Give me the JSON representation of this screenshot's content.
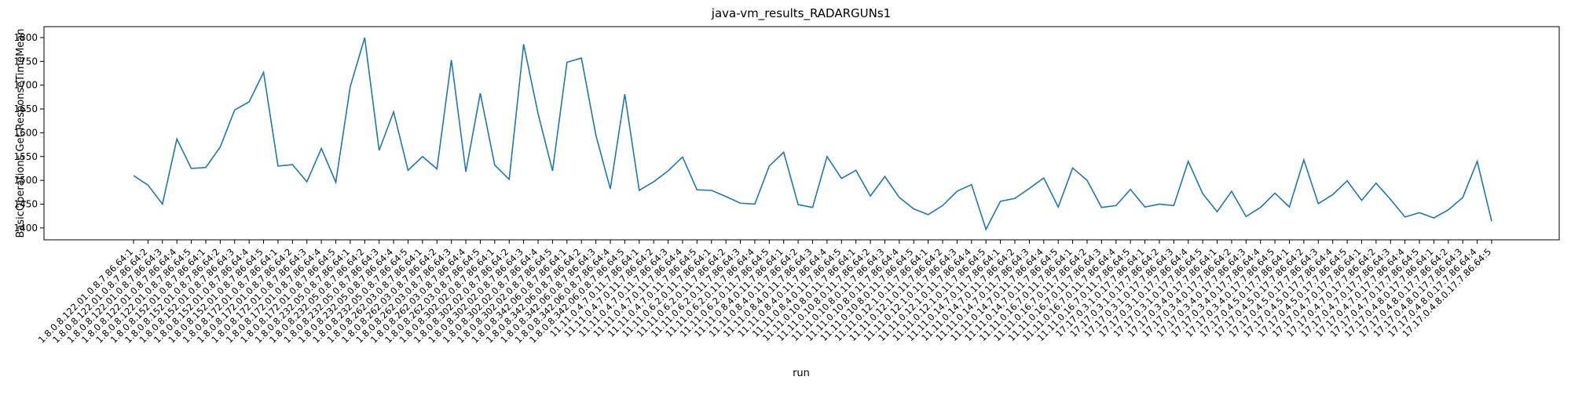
{
  "chart_data": {
    "type": "line",
    "title": "java-vm_results_RADARGUNs1",
    "x_label": "run",
    "y_label": "BasicOperations.Get.ResponseTimeMean",
    "categories": [
      "1.8.0.8.122.01.0.8.7.86.64:1",
      "1.8.0.8.122.01.0.8.7.86.64:2",
      "1.8.0.8.122.01.0.8.7.86.64:3",
      "1.8.0.8.122.01.0.8.7.86.64:4",
      "1.8.0.8.122.01.0.8.7.86.64:5",
      "1.8.0.8.152.01.0.8.7.86.64:1",
      "1.8.0.8.152.01.0.8.7.86.64:2",
      "1.8.0.8.152.01.0.8.7.86.64:3",
      "1.8.0.8.152.01.0.8.7.86.64:4",
      "1.8.0.8.152.01.0.8.7.86.64:5",
      "1.8.0.8.172.01.0.8.7.86.64:1",
      "1.8.0.8.172.01.0.8.7.86.64:2",
      "1.8.0.8.172.01.0.8.7.86.64:3",
      "1.8.0.8.172.01.0.8.7.86.64:4",
      "1.8.0.8.172.01.0.8.7.86.64:5",
      "1.8.0.8.232.05.0.8.7.86.64:1",
      "1.8.0.8.232.05.0.8.7.86.64:2",
      "1.8.0.8.232.05.0.8.7.86.64:3",
      "1.8.0.8.232.05.0.8.7.86.64:4",
      "1.8.0.8.232.05.0.8.7.86.64:5",
      "1.8.0.8.262.03.0.8.7.86.64:1",
      "1.8.0.8.262.03.0.8.7.86.64:2",
      "1.8.0.8.262.03.0.8.7.86.64:3",
      "1.8.0.8.262.03.0.8.7.86.64:4",
      "1.8.0.8.262.03.0.8.7.86.64:5",
      "1.8.0.8.302.02.0.8.7.86.64:1",
      "1.8.0.8.302.02.0.8.7.86.64:2",
      "1.8.0.8.302.02.0.8.7.86.64:3",
      "1.8.0.8.302.02.0.8.7.86.64:4",
      "1.8.0.8.302.02.0.8.7.86.64:5",
      "1.8.0.8.342.06.0.8.7.86.64:1",
      "1.8.0.8.342.06.0.8.7.86.64:2",
      "1.8.0.8.342.06.0.8.7.86.64:3",
      "1.8.0.8.342.06.0.8.7.86.64:4",
      "1.8.0.8.342.06.0.8.7.86.64:5",
      "11.11.0.4.7.0.11.7.86.64:1",
      "11.11.0.4.7.0.11.7.86.64:2",
      "11.11.0.4.7.0.11.7.86.64:3",
      "11.11.0.4.7.0.11.7.86.64:4",
      "11.11.0.4.7.0.11.7.86.64:5",
      "11.11.0.6.2.0.11.7.86.64:1",
      "11.11.0.6.2.0.11.7.86.64:2",
      "11.11.0.6.2.0.11.7.86.64:3",
      "11.11.0.6.2.0.11.7.86.64:4",
      "11.11.0.6.2.0.11.7.86.64:5",
      "11.11.0.8.4.0.11.7.86.64:1",
      "11.11.0.8.4.0.11.7.86.64:2",
      "11.11.0.8.4.0.11.7.86.64:3",
      "11.11.0.8.4.0.11.7.86.64:4",
      "11.11.0.8.4.0.11.7.86.64:5",
      "11.11.0.10.8.0.11.7.86.64:1",
      "11.11.0.10.8.0.11.7.86.64:2",
      "11.11.0.10.8.0.11.7.86.64:3",
      "11.11.0.10.8.0.11.7.86.64:4",
      "11.11.0.10.8.0.11.7.86.64:5",
      "11.11.0.12.1.0.11.7.86.64:1",
      "11.11.0.12.1.0.11.7.86.64:2",
      "11.11.0.12.1.0.11.7.86.64:3",
      "11.11.0.12.1.0.11.7.86.64:4",
      "11.11.0.12.1.0.11.7.86.64:5",
      "11.11.0.14.7.0.11.7.86.64:1",
      "11.11.0.14.7.0.11.7.86.64:2",
      "11.11.0.14.7.0.11.7.86.64:3",
      "11.11.0.14.7.0.11.7.86.64:4",
      "11.11.0.14.7.0.11.7.86.64:5",
      "11.11.0.16.7.0.11.7.86.64:1",
      "11.11.0.16.7.0.11.7.86.64:2",
      "11.11.0.16.7.0.11.7.86.64:3",
      "11.11.0.16.7.0.11.7.86.64:4",
      "11.11.0.16.7.0.11.7.86.64:5",
      "17.17.0.3.1.0.17.7.86.64:1",
      "17.17.0.3.1.0.17.7.86.64:2",
      "17.17.0.3.1.0.17.7.86.64:3",
      "17.17.0.3.1.0.17.7.86.64:4",
      "17.17.0.3.1.0.17.7.86.64:5",
      "17.17.0.3.4.0.17.7.86.64:1",
      "17.17.0.3.4.0.17.7.86.64:2",
      "17.17.0.3.4.0.17.7.86.64:3",
      "17.17.0.3.4.0.17.7.86.64:4",
      "17.17.0.3.4.0.17.7.86.64:5",
      "17.17.0.4.5.0.17.7.86.64:1",
      "17.17.0.4.5.0.17.7.86.64:2",
      "17.17.0.4.5.0.17.7.86.64:3",
      "17.17.0.4.5.0.17.7.86.64:4",
      "17.17.0.4.5.0.17.7.86.64:5",
      "17.17.0.4.7.0.17.7.86.64:1",
      "17.17.0.4.7.0.17.7.86.64:2",
      "17.17.0.4.7.0.17.7.86.64:3",
      "17.17.0.4.7.0.17.7.86.64:4",
      "17.17.0.4.7.0.17.7.86.64:5",
      "17.17.0.4.8.0.17.7.86.64:1",
      "17.17.0.4.8.0.17.7.86.64:2",
      "17.17.0.4.8.0.17.7.86.64:3",
      "17.17.0.4.8.0.17.7.86.64:4",
      "17.17.0.4.8.0.17.7.86.64:5"
    ],
    "series": [
      {
        "name": "BasicOperations.Get.ResponseTimeMean",
        "color": "#1f77b4",
        "values": [
          1510,
          1490,
          1450,
          1587,
          1525,
          1527,
          1570,
          1648,
          1665,
          1727,
          1530,
          1533,
          1497,
          1567,
          1496,
          1697,
          1800,
          1563,
          1644,
          1521,
          1550,
          1524,
          1753,
          1518,
          1683,
          1532,
          1502,
          1786,
          1640,
          1520,
          1748,
          1757,
          1595,
          1482,
          1681,
          1479,
          1497,
          1520,
          1549,
          1480,
          1479,
          1466,
          1452,
          1450,
          1530,
          1559,
          1449,
          1443,
          1550,
          1504,
          1521,
          1467,
          1508,
          1464,
          1440,
          1428,
          1447,
          1477,
          1491,
          1397,
          1456,
          1462,
          1483,
          1505,
          1444,
          1526,
          1500,
          1443,
          1447,
          1481,
          1444,
          1450,
          1447,
          1540,
          1472,
          1434,
          1477,
          1424,
          1443,
          1473,
          1444,
          1543,
          1451,
          1470,
          1499,
          1458,
          1494,
          1460,
          1423,
          1432,
          1421,
          1438,
          1464,
          1540,
          1414
        ]
      }
    ],
    "ylim": [
      1375,
      1823
    ],
    "yticks": [
      1400,
      1450,
      1500,
      1550,
      1600,
      1650,
      1700,
      1750,
      1800
    ]
  }
}
